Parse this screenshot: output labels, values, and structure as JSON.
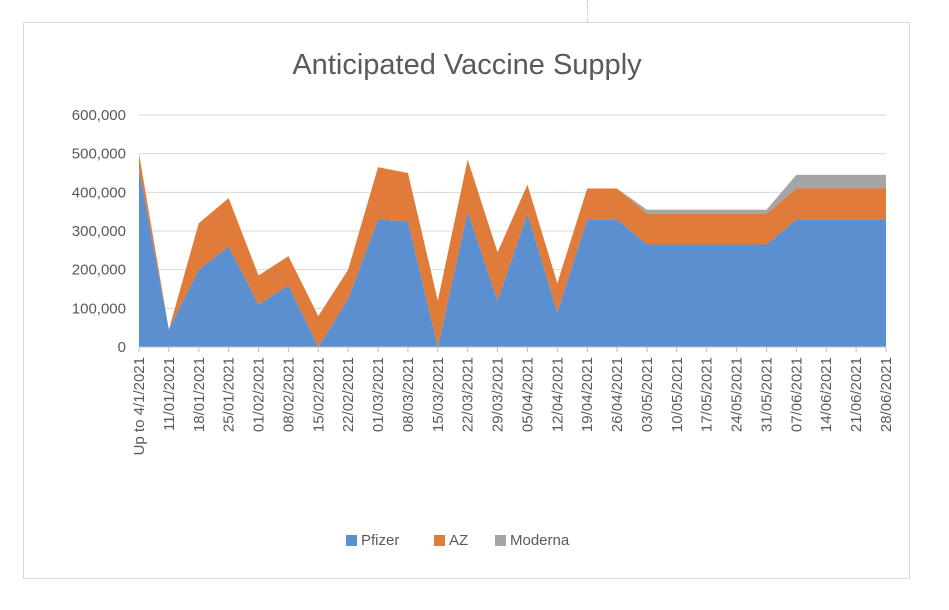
{
  "chart_data": {
    "type": "area",
    "stacked": true,
    "title": "Anticipated Vaccine Supply",
    "xlabel": "",
    "ylabel": "",
    "ylim": [
      0,
      600000
    ],
    "yticks": [
      0,
      100000,
      200000,
      300000,
      400000,
      500000,
      600000
    ],
    "ytick_labels": [
      "0",
      "100,000",
      "200,000",
      "300,000",
      "400,000",
      "500,000",
      "600,000"
    ],
    "grid": true,
    "legend_position": "bottom",
    "categories": [
      "Up to 4/1/2021",
      "11/01/2021",
      "18/01/2021",
      "25/01/2021",
      "01/02/2021",
      "08/02/2021",
      "15/02/2021",
      "22/02/2021",
      "01/03/2021",
      "08/03/2021",
      "15/03/2021",
      "22/03/2021",
      "29/03/2021",
      "05/04/2021",
      "12/04/2021",
      "19/04/2021",
      "26/04/2021",
      "03/05/2021",
      "10/05/2021",
      "17/05/2021",
      "24/05/2021",
      "31/05/2021",
      "07/06/2021",
      "14/06/2021",
      "21/06/2021",
      "28/06/2021"
    ],
    "series": [
      {
        "name": "Pfizer",
        "color": "#5b8fd0",
        "values": [
          460000,
          45000,
          200000,
          260000,
          110000,
          160000,
          0,
          125000,
          330000,
          325000,
          0,
          350000,
          120000,
          345000,
          90000,
          330000,
          330000,
          265000,
          265000,
          265000,
          265000,
          265000,
          330000,
          330000,
          330000,
          330000
        ]
      },
      {
        "name": "AZ",
        "color": "#e07b39",
        "values": [
          40000,
          0,
          120000,
          125000,
          75000,
          75000,
          80000,
          75000,
          135000,
          125000,
          120000,
          135000,
          125000,
          75000,
          75000,
          80000,
          80000,
          80000,
          80000,
          80000,
          80000,
          80000,
          80000,
          80000,
          80000,
          80000
        ]
      },
      {
        "name": "Moderna",
        "color": "#a5a5a5",
        "values": [
          0,
          0,
          0,
          0,
          0,
          0,
          0,
          0,
          0,
          0,
          0,
          0,
          0,
          0,
          0,
          0,
          0,
          10000,
          10000,
          10000,
          10000,
          10000,
          35000,
          35000,
          35000,
          35000
        ]
      }
    ]
  }
}
